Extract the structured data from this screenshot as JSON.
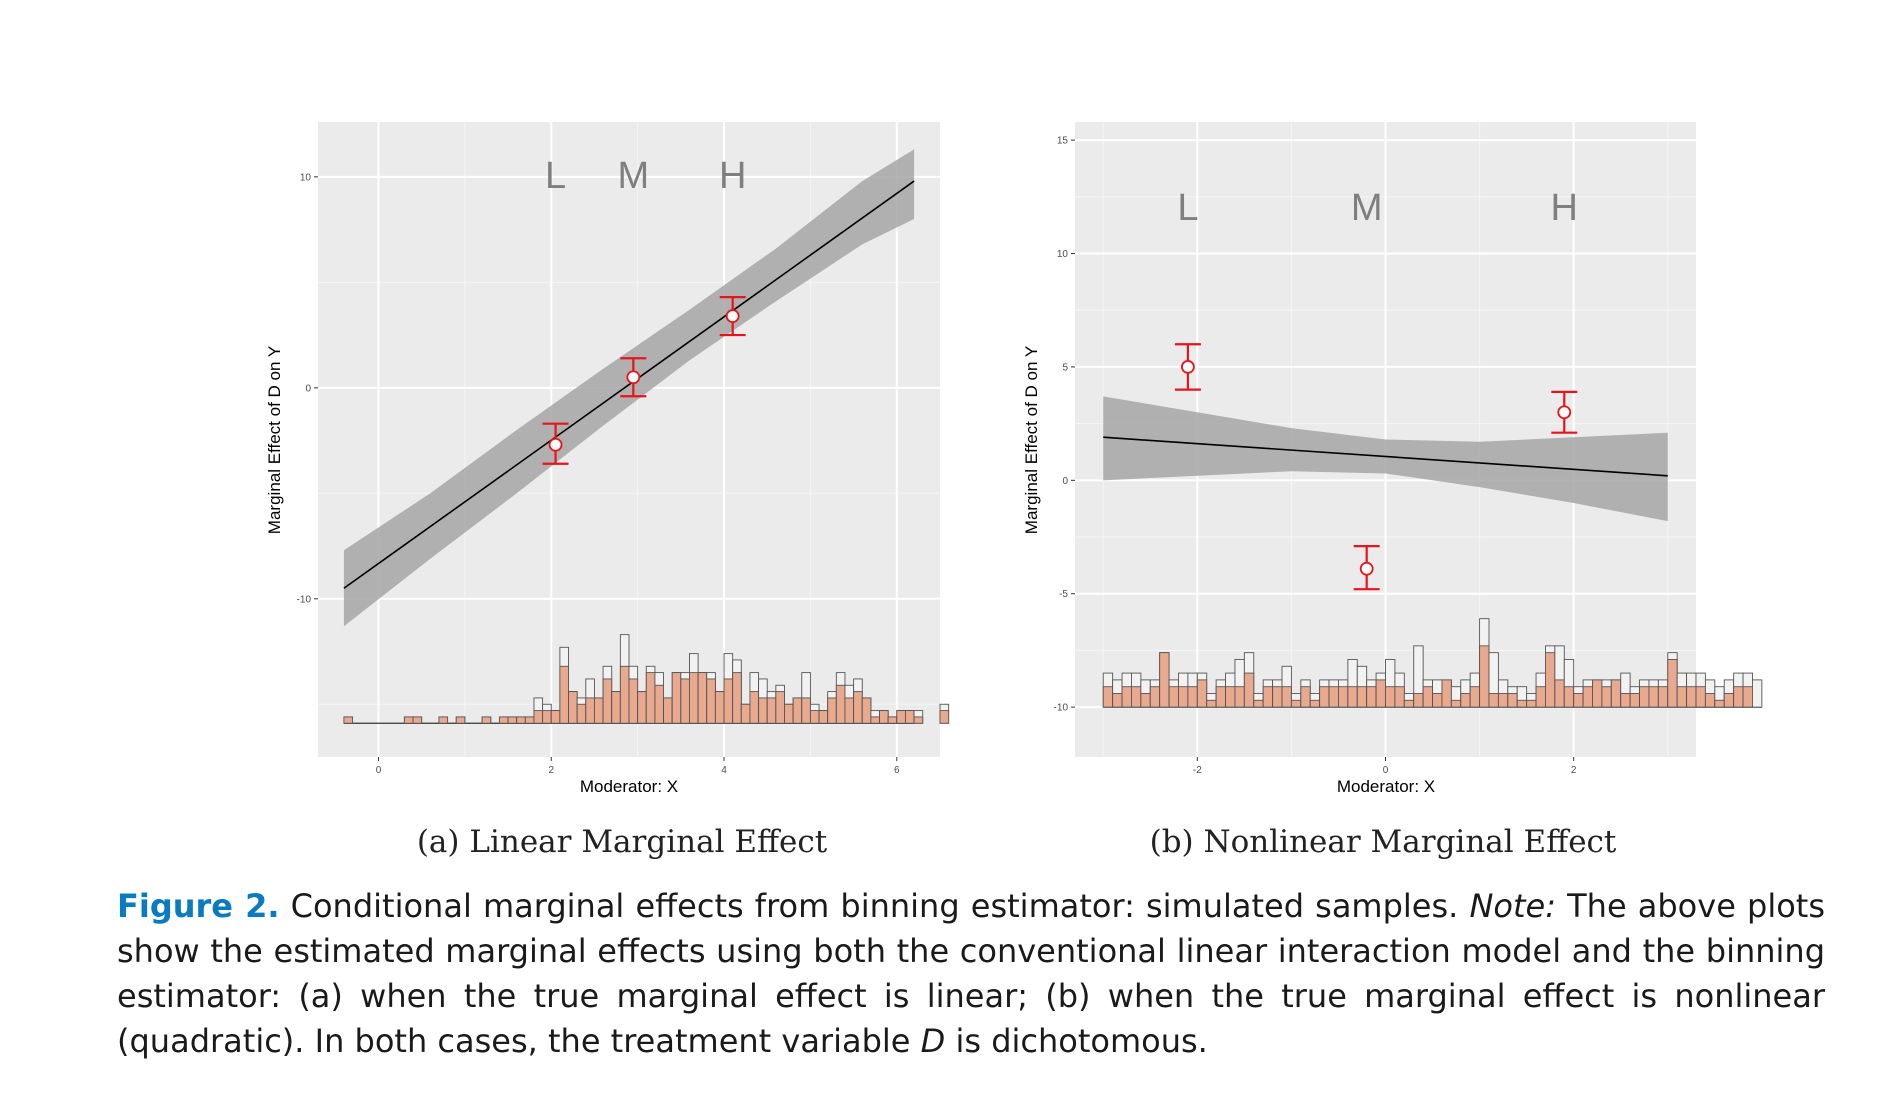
{
  "figure": {
    "caption": {
      "label": "Figure 2.",
      "text1": " Conditional marginal effects from binning estimator: simulated samples. ",
      "note_label": "Note:",
      "text2": " The above plots show the estimated marginal effects using both the conventional linear interaction model and the binning estimator: (a) when the true marginal effect is linear; (b) when the true marginal effect is nonlinear (quadratic). In both cases, the treatment variable ",
      "var": "D",
      "text3": " is dichotomous."
    }
  },
  "chart_data": [
    {
      "type": "line",
      "subcaption": "(a) Linear Marginal Effect",
      "xlabel": "Moderator: X",
      "ylabel": "Marginal Effect of D on Y",
      "xlim": [
        -0.7,
        6.5
      ],
      "ylim": [
        -17.5,
        12.6
      ],
      "x_ticks": [
        0,
        2,
        4,
        6
      ],
      "x_tick_labels": [
        "0",
        "2",
        "4",
        "6"
      ],
      "y_ticks": [
        -10,
        0,
        10
      ],
      "y_tick_labels": [
        "-10",
        "0",
        "10"
      ],
      "bin_labels": [
        {
          "text": "L",
          "x": 2.05
        },
        {
          "text": "M",
          "x": 2.95
        },
        {
          "text": "H",
          "x": 4.1
        }
      ],
      "line": {
        "x": [
          -0.4,
          6.2
        ],
        "y": [
          -9.5,
          9.8
        ]
      },
      "ci_band": {
        "x": [
          -0.4,
          0.6,
          1.6,
          2.6,
          3.6,
          4.6,
          5.6,
          6.2
        ],
        "lower": [
          -11.3,
          -8.1,
          -5.0,
          -1.8,
          1.3,
          4.1,
          6.8,
          8.0
        ],
        "upper": [
          -7.7,
          -5.0,
          -2.0,
          0.9,
          3.7,
          6.6,
          9.8,
          11.3
        ]
      },
      "bin_estimates": [
        {
          "x": 2.05,
          "est": -2.7,
          "lower": -3.6,
          "upper": -1.7
        },
        {
          "x": 2.95,
          "est": 0.5,
          "lower": -0.4,
          "upper": 1.4
        },
        {
          "x": 4.1,
          "est": 3.4,
          "lower": 2.5,
          "upper": 4.3
        }
      ],
      "histogram": {
        "x_start": -0.4,
        "bin_width": 0.1,
        "base": -15.9,
        "total": [
          0.3,
          0,
          0,
          0,
          0,
          0,
          0,
          0.3,
          0.3,
          0,
          0,
          0.3,
          0,
          0.3,
          0,
          0,
          0.3,
          0,
          0.3,
          0.3,
          0.3,
          0.3,
          1.2,
          0.9,
          0.6,
          3.6,
          1.5,
          1.2,
          2.1,
          1.2,
          2.7,
          1.5,
          4.2,
          2.7,
          1.5,
          2.7,
          2.4,
          1.2,
          2.4,
          2.4,
          3.3,
          2.4,
          2.4,
          1.5,
          3.3,
          3.0,
          0.9,
          2.4,
          2.1,
          1.5,
          1.8,
          0.9,
          1.2,
          2.4,
          0.9,
          0.6,
          1.5,
          2.4,
          1.8,
          2.1,
          1.2,
          0.6,
          0.6,
          0.3,
          0.6,
          0.6,
          0.6,
          0,
          0,
          0.9,
          0,
          0,
          0,
          0,
          0,
          0,
          0,
          0,
          0,
          0,
          0,
          0,
          0,
          0,
          0,
          0,
          0,
          0,
          0,
          0,
          0,
          0,
          0,
          0,
          0,
          0,
          0,
          0,
          0,
          0.3
        ],
        "treated": [
          0.3,
          0,
          0,
          0,
          0,
          0,
          0,
          0.3,
          0.3,
          0,
          0,
          0.3,
          0,
          0.3,
          0,
          0,
          0.3,
          0,
          0.3,
          0.3,
          0.3,
          0.3,
          0.6,
          0.6,
          0.6,
          2.7,
          1.5,
          0.9,
          1.2,
          1.2,
          2.1,
          1.5,
          2.7,
          2.1,
          1.5,
          2.4,
          1.8,
          1.2,
          2.4,
          2.1,
          2.4,
          2.4,
          2.1,
          1.5,
          2.1,
          2.4,
          0.9,
          1.5,
          1.2,
          1.2,
          1.5,
          0.9,
          1.2,
          1.2,
          0.6,
          0.6,
          1.2,
          1.8,
          1.2,
          1.5,
          1.2,
          0.3,
          0.6,
          0.3,
          0.6,
          0.6,
          0.3,
          0,
          0,
          0.6,
          0,
          0,
          0,
          0,
          0,
          0,
          0,
          0,
          0,
          0,
          0,
          0,
          0,
          0,
          0,
          0,
          0,
          0,
          0,
          0,
          0,
          0,
          0,
          0,
          0,
          0,
          0,
          0,
          0,
          0
        ],
        "baseline_x": [
          -0.4,
          6.2
        ]
      }
    },
    {
      "type": "line",
      "subcaption": "(b) Nonlinear Marginal Effect",
      "xlabel": "Moderator: X",
      "ylabel": "Marginal Effect of D on Y",
      "xlim": [
        -3.3,
        3.3
      ],
      "ylim": [
        -12.2,
        15.8
      ],
      "x_ticks": [
        -2,
        0,
        2
      ],
      "x_tick_labels": [
        "-2",
        "0",
        "2"
      ],
      "y_ticks": [
        -10,
        -5,
        0,
        5,
        10,
        15
      ],
      "y_tick_labels": [
        "-10",
        "-5",
        "0",
        "5",
        "10",
        "15"
      ],
      "bin_labels": [
        {
          "text": "L",
          "x": -2.1
        },
        {
          "text": "M",
          "x": -0.2
        },
        {
          "text": "H",
          "x": 1.9
        }
      ],
      "line": {
        "x": [
          -3.0,
          3.0
        ],
        "y": [
          1.9,
          0.2
        ]
      },
      "ci_band": {
        "x": [
          -3.0,
          -2.0,
          -1.0,
          0.0,
          1.0,
          2.0,
          3.0
        ],
        "lower": [
          0.0,
          0.2,
          0.4,
          0.3,
          -0.3,
          -1.0,
          -1.8
        ],
        "upper": [
          3.7,
          3.0,
          2.3,
          1.8,
          1.7,
          1.9,
          2.1
        ]
      },
      "bin_estimates": [
        {
          "x": -2.1,
          "est": 5.0,
          "lower": 4.0,
          "upper": 6.0
        },
        {
          "x": -0.2,
          "est": -3.9,
          "lower": -4.8,
          "upper": -2.9
        },
        {
          "x": 1.9,
          "est": 3.0,
          "lower": 2.1,
          "upper": 3.9
        }
      ],
      "histogram": {
        "x_start": -3.0,
        "bin_width": 0.1,
        "base": -10.0,
        "total": [
          1.5,
          1.2,
          1.5,
          1.5,
          1.2,
          1.2,
          2.4,
          1.2,
          1.5,
          1.5,
          1.5,
          0.6,
          1.2,
          1.5,
          2.1,
          2.4,
          0.6,
          1.2,
          1.2,
          1.8,
          0.6,
          1.2,
          0.6,
          1.2,
          1.2,
          1.2,
          2.1,
          1.8,
          1.2,
          1.5,
          2.1,
          1.5,
          0.6,
          2.7,
          1.2,
          1.2,
          1.2,
          0.9,
          1.2,
          1.5,
          3.9,
          2.4,
          1.2,
          0.9,
          0.9,
          0.6,
          1.5,
          2.7,
          2.7,
          2.1,
          0.9,
          1.2,
          1.2,
          1.2,
          1.2,
          1.5,
          0.9,
          1.2,
          1.2,
          1.2,
          2.4,
          1.5,
          1.5,
          1.5,
          1.2,
          0.9,
          1.2,
          1.5,
          1.5,
          1.2
        ],
        "treated": [
          0.9,
          0.6,
          0.9,
          0.9,
          0.6,
          0.9,
          2.4,
          0.9,
          0.9,
          0.9,
          1.2,
          0.3,
          0.9,
          0.9,
          0.9,
          1.5,
          0.3,
          0.9,
          0.9,
          0.9,
          0.3,
          0.9,
          0.3,
          0.9,
          0.9,
          0.9,
          0.9,
          0.9,
          0.9,
          1.2,
          0.9,
          0.9,
          0.3,
          0.6,
          0.9,
          0.6,
          1.2,
          0.3,
          0.6,
          0.9,
          2.7,
          0.6,
          0.6,
          0.6,
          0.3,
          0.3,
          0.9,
          2.4,
          1.2,
          0.9,
          0.6,
          0.9,
          1.2,
          0.9,
          1.2,
          0.6,
          0.6,
          0.9,
          0.9,
          0.9,
          2.1,
          0.9,
          0.9,
          0.9,
          0.6,
          0.3,
          0.6,
          0.9,
          0.9,
          0.0
        ],
        "baseline_x": [
          -3.0,
          4.0
        ]
      }
    }
  ]
}
